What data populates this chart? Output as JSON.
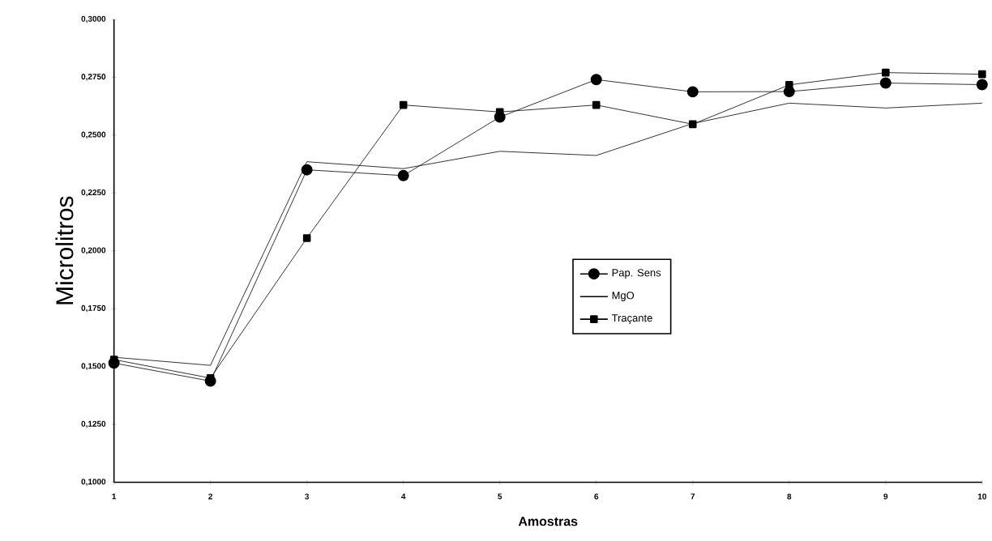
{
  "chart_data": {
    "type": "line",
    "xlabel": "Amostras",
    "ylabel": "Microlitros",
    "x": [
      1,
      2,
      3,
      4,
      5,
      6,
      7,
      8,
      9,
      10
    ],
    "series": [
      {
        "name": "Pap. Sens",
        "color": "#000000",
        "marker": "circle",
        "values": [
          0.1515,
          0.1437,
          0.235,
          0.2325,
          0.2578,
          0.274,
          0.2687,
          0.2688,
          0.2725,
          0.2718
        ]
      },
      {
        "name": "MgO",
        "color": "#000000",
        "marker": "none",
        "values": [
          0.154,
          0.1505,
          0.2385,
          0.2355,
          0.243,
          0.2412,
          0.255,
          0.2638,
          0.2617,
          0.2638
        ]
      },
      {
        "name": "Traçante",
        "color": "#000000",
        "marker": "square",
        "values": [
          0.153,
          0.145,
          0.2055,
          0.263,
          0.26,
          0.263,
          0.2547,
          0.2717,
          0.277,
          0.2763
        ]
      }
    ],
    "xlim": [
      1,
      10
    ],
    "xticks": [
      1,
      2,
      3,
      4,
      5,
      6,
      7,
      8,
      9,
      10
    ],
    "ylim": [
      0.1,
      0.3
    ],
    "yticks": [
      {
        "value": 0.1,
        "label": "0,1000"
      },
      {
        "value": 0.125,
        "label": "0,1250"
      },
      {
        "value": 0.15,
        "label": "0,1500"
      },
      {
        "value": 0.175,
        "label": "0,1750"
      },
      {
        "value": 0.2,
        "label": "0,2000"
      },
      {
        "value": 0.225,
        "label": "0,2250"
      },
      {
        "value": 0.25,
        "label": "0,2500"
      },
      {
        "value": 0.275,
        "label": "0,2750"
      },
      {
        "value": 0.3,
        "label": "0,3000"
      }
    ],
    "legend": "center",
    "grid": false,
    "line_style": "solid"
  }
}
